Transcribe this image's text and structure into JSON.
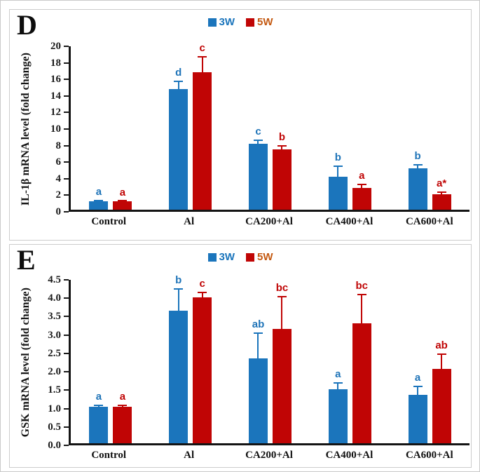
{
  "legend": {
    "items": [
      {
        "label": "3W",
        "swatch_color": "#1B75BC",
        "text_color": "#1B75BC"
      },
      {
        "label": "5W",
        "swatch_color": "#C00505",
        "text_color": "#C45911"
      }
    ]
  },
  "chart_data": [
    {
      "panel_label": "D",
      "type": "bar",
      "title": "",
      "ylabel": "IL-1β mRNA level (fold change)",
      "xlabel": "",
      "categories": [
        "Control",
        "Al",
        "CA200+Al",
        "CA400+Al",
        "CA600+Al"
      ],
      "ylim": [
        0,
        20
      ],
      "ytick_labels": [
        "0",
        "2",
        "4",
        "6",
        "8",
        "10",
        "12",
        "14",
        "16",
        "18",
        "20"
      ],
      "grid": false,
      "legend_position": "top-center",
      "series": [
        {
          "name": "3W",
          "color": "#1B75BC",
          "letter_color": "#1F74B8",
          "values": [
            1.0,
            14.6,
            8.0,
            4.0,
            5.0
          ],
          "errors": [
            0.15,
            1.0,
            0.5,
            1.3,
            0.5
          ],
          "letters": [
            "a",
            "d",
            "c",
            "b",
            "b"
          ]
        },
        {
          "name": "5W",
          "color": "#C00505",
          "letter_color": "#C00505",
          "values": [
            1.0,
            16.6,
            7.3,
            2.6,
            1.9
          ],
          "errors": [
            0.12,
            2.0,
            0.5,
            0.55,
            0.3
          ],
          "letters": [
            "a",
            "c",
            "b",
            "a",
            "a*"
          ]
        }
      ]
    },
    {
      "panel_label": "E",
      "type": "bar",
      "title": "",
      "ylabel": "GSK mRNA level (fold change)",
      "xlabel": "",
      "categories": [
        "Control",
        "Al",
        "CA200+Al",
        "CA400+Al",
        "CA600+Al"
      ],
      "ylim": [
        0,
        4.5
      ],
      "ytick_labels": [
        "0.0",
        "0.5",
        "1.0",
        "1.5",
        "2.0",
        "2.5",
        "3.0",
        "3.5",
        "4.0",
        "4.5"
      ],
      "grid": false,
      "legend_position": "top-center",
      "series": [
        {
          "name": "3W",
          "color": "#1B75BC",
          "letter_color": "#1F74B8",
          "values": [
            1.0,
            3.6,
            2.3,
            1.47,
            1.32
          ],
          "errors": [
            0.04,
            0.62,
            0.72,
            0.18,
            0.25
          ],
          "letters": [
            "a",
            "b",
            "ab",
            "a",
            "a"
          ]
        },
        {
          "name": "5W",
          "color": "#C00505",
          "letter_color": "#C00505",
          "values": [
            1.0,
            3.97,
            3.1,
            3.27,
            2.03
          ],
          "errors": [
            0.04,
            0.15,
            0.9,
            0.8,
            0.42
          ],
          "letters": [
            "a",
            "c",
            "bc",
            "bc",
            "ab"
          ]
        }
      ]
    }
  ]
}
